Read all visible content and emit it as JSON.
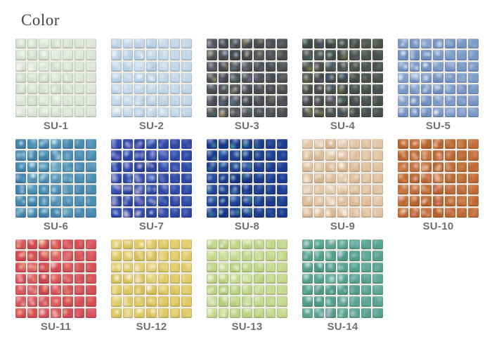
{
  "page": {
    "title": "Color",
    "title_color": "#3f474e",
    "label_color": "#6d7175",
    "background": "#ffffff",
    "grout_color": "#f0ede6"
  },
  "swatch_grid": {
    "tiles_per_row": 7,
    "tiles_per_column": 7,
    "per_row_layout": [
      5,
      5,
      4
    ]
  },
  "swatches": [
    {
      "id": "su-1",
      "label": "SU-1",
      "palette": {
        "base": "#dde7d8",
        "light": "#f5f8f0",
        "dark": "#c3d6c3",
        "accents": [
          "#ffffff",
          "#e4f0e0",
          "#f8fbf4"
        ]
      }
    },
    {
      "id": "su-2",
      "label": "SU-2",
      "palette": {
        "base": "#c6daea",
        "light": "#e9f2f8",
        "dark": "#a6c2da",
        "accents": [
          "#ffffff",
          "#d6e8f3",
          "#bcd4e8"
        ]
      }
    },
    {
      "id": "su-3",
      "label": "SU-3",
      "palette": {
        "base": "#4d5257",
        "light": "#6c7278",
        "dark": "#33373b",
        "accents": [
          "#5a7fa8",
          "#4a8a7a",
          "#7a6a9a",
          "#b8a86a"
        ]
      }
    },
    {
      "id": "su-4",
      "label": "SU-4",
      "palette": {
        "base": "#4c5450",
        "light": "#6e746a",
        "dark": "#31393b",
        "accents": [
          "#3f7a78",
          "#75568a",
          "#8a8a4e",
          "#3a5a8a"
        ]
      }
    },
    {
      "id": "su-5",
      "label": "SU-5",
      "palette": {
        "base": "#7e9cca",
        "light": "#aec4e0",
        "dark": "#6182b6",
        "accents": [
          "#eaf2fa",
          "#8fb0d8",
          "#ffffff"
        ]
      }
    },
    {
      "id": "su-6",
      "label": "SU-6",
      "palette": {
        "base": "#4b8fb5",
        "light": "#8dc8dc",
        "dark": "#33719c",
        "accents": [
          "#c2eaf0",
          "#5aa8c8",
          "#e8f6f6"
        ]
      }
    },
    {
      "id": "su-7",
      "label": "SU-7",
      "palette": {
        "base": "#2f4cab",
        "light": "#5f7ad0",
        "dark": "#1e3488",
        "accents": [
          "#c0a0e0",
          "#eeb0d0",
          "#88a8e8",
          "#f0d8ea"
        ]
      }
    },
    {
      "id": "su-8",
      "label": "SU-8",
      "palette": {
        "base": "#1f3f95",
        "light": "#3a60b8",
        "dark": "#122a70",
        "accents": [
          "#3e9898",
          "#52b8ae",
          "#2a6ab0"
        ]
      }
    },
    {
      "id": "su-9",
      "label": "SU-9",
      "palette": {
        "base": "#e2c5a5",
        "light": "#f4e7d2",
        "dark": "#cda87e",
        "accents": [
          "#fdf6e8",
          "#e8cfae",
          "#ffffff"
        ]
      }
    },
    {
      "id": "su-10",
      "label": "SU-10",
      "palette": {
        "base": "#c16d35",
        "light": "#dc9260",
        "dark": "#a35524",
        "accents": [
          "#f0b0a0",
          "#e8955e",
          "#f5d0b8",
          "#ee8fae"
        ]
      }
    },
    {
      "id": "su-11",
      "label": "SU-11",
      "palette": {
        "base": "#d9505a",
        "light": "#ea8280",
        "dark": "#bb3a44",
        "accents": [
          "#f0a868",
          "#f5c2c8",
          "#e87a48",
          "#f6d78e"
        ]
      }
    },
    {
      "id": "su-12",
      "label": "SU-12",
      "palette": {
        "base": "#e2cd68",
        "light": "#f0e4a4",
        "dark": "#cdb348",
        "accents": [
          "#faf2cc",
          "#e8d880",
          "#ffffff"
        ]
      }
    },
    {
      "id": "su-13",
      "label": "SU-13",
      "palette": {
        "base": "#c5da8e",
        "light": "#e6f0c4",
        "dark": "#a8c468",
        "accents": [
          "#f6fae6",
          "#d2e49e",
          "#ffffff"
        ]
      }
    },
    {
      "id": "su-14",
      "label": "SU-14",
      "palette": {
        "base": "#5aa794",
        "light": "#8ecabb",
        "dark": "#3f8a78",
        "accents": [
          "#c2e6dc",
          "#a0c8e0",
          "#6ab8a4",
          "#dcc8ea"
        ]
      }
    }
  ]
}
